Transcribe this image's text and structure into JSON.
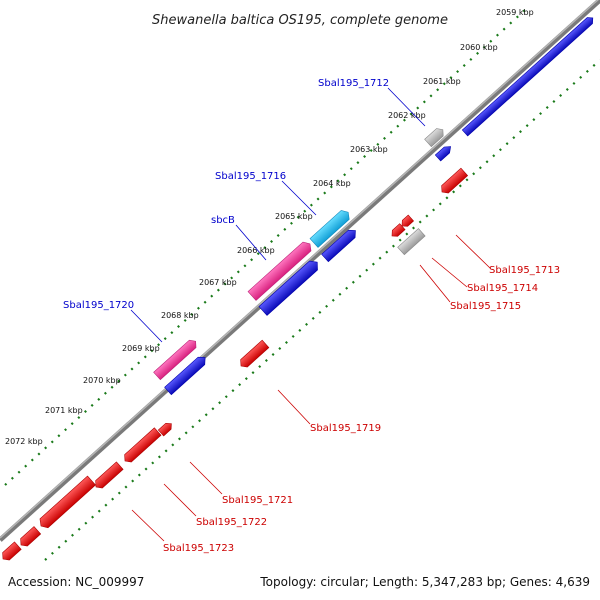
{
  "title": "Shewanella baltica OS195, complete genome",
  "footer": {
    "accession": "Accession: NC_009997",
    "stats": "Topology: circular; Length: 5,347,283 bp; Genes: 4,639"
  },
  "colors": {
    "forward_label": "#0000cc",
    "reverse_label": "#cc0000",
    "blue": "#1414d8",
    "red": "#ee1111",
    "pink": "#ee3399",
    "cyan": "#22bbee",
    "gray": "#bbbbbb",
    "dots": "#1a7a1a",
    "backbone": "#8a8a8a"
  },
  "kbp_ticks": [
    "2059 kbp",
    "2060 kbp",
    "2061 kbp",
    "2062 kbp",
    "2063 kbp",
    "2064 kbp",
    "2065 kbp",
    "2066 kbp",
    "2067 kbp",
    "2068 kbp",
    "2069 kbp",
    "2070 kbp",
    "2071 kbp",
    "2072 kbp"
  ],
  "gene_labels": {
    "forward": [
      "Sbal195_1712",
      "Sbal195_1716",
      "sbcB",
      "Sbal195_1720"
    ],
    "reverse": [
      "Sbal195_1713",
      "Sbal195_1714",
      "Sbal195_1715",
      "Sbal195_1719",
      "Sbal195_1721",
      "Sbal195_1722",
      "Sbal195_1723"
    ]
  }
}
